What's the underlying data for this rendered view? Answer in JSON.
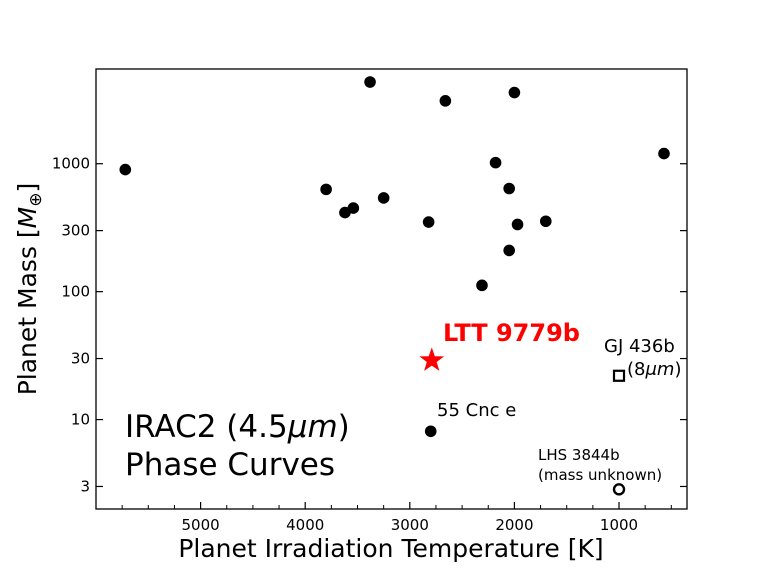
{
  "chart_data": {
    "type": "scatter",
    "xlabel": "Planet Irradiation Temperature [K]",
    "ylabel": "Planet Mass [M⊕]",
    "x_axis": {
      "reversed": true,
      "range": [
        6000,
        350
      ],
      "ticks": [
        5000,
        4000,
        3000,
        2000,
        1000
      ]
    },
    "y_axis": {
      "scale": "log",
      "range": [
        2.0,
        5500
      ],
      "ticks": [
        3,
        10,
        30,
        100,
        300,
        1000
      ],
      "tick_labels": [
        "3",
        "10",
        "30",
        "100",
        "300",
        "1000"
      ]
    },
    "grid": false,
    "series": [
      {
        "marker": "filled-circle",
        "color": "#000000",
        "points": [
          {
            "x": 5720,
            "y": 900
          },
          {
            "x": 3380,
            "y": 4350
          },
          {
            "x": 2660,
            "y": 3100
          },
          {
            "x": 2000,
            "y": 3600
          },
          {
            "x": 570,
            "y": 1200
          },
          {
            "x": 2180,
            "y": 1020
          },
          {
            "x": 3800,
            "y": 630
          },
          {
            "x": 3250,
            "y": 540
          },
          {
            "x": 2050,
            "y": 640
          },
          {
            "x": 3540,
            "y": 450
          },
          {
            "x": 3620,
            "y": 415
          },
          {
            "x": 2820,
            "y": 350
          },
          {
            "x": 1700,
            "y": 355
          },
          {
            "x": 1970,
            "y": 335
          },
          {
            "x": 2050,
            "y": 210
          },
          {
            "x": 2310,
            "y": 112
          },
          {
            "x": 2800,
            "y": 8.1
          }
        ]
      }
    ],
    "highlight": {
      "label": "LTT 9779b",
      "x": 2790,
      "y": 29,
      "marker": "star",
      "color": "#ff0000"
    },
    "special_points": [
      {
        "label_lines": [
          "GJ 436b",
          "(8μm)"
        ],
        "x": 1000,
        "y": 22,
        "marker": "open-square"
      },
      {
        "label_lines": [
          "LHS 3844b",
          "(mass unknown)"
        ],
        "x": 1000,
        "y": 2.85,
        "marker": "open-circle"
      }
    ],
    "annotations": [
      {
        "text": "55 Cnc e",
        "x": 2790,
        "y": 8.1
      }
    ],
    "inset_text": [
      "IRAC2 (4.5μm)",
      "Phase Curves"
    ]
  }
}
